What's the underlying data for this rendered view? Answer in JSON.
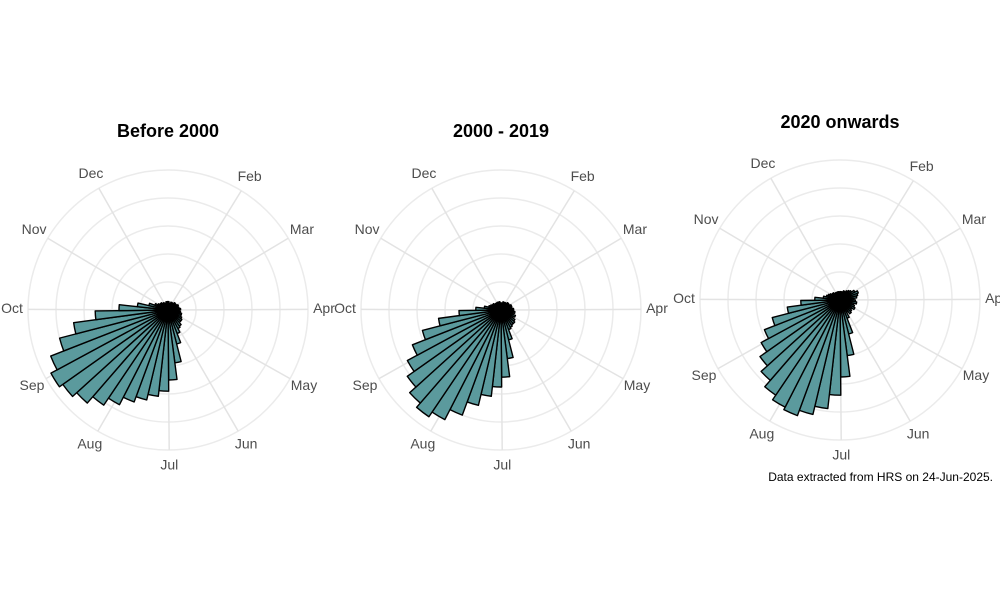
{
  "chart_data": [
    {
      "type": "polar_bar",
      "title": "Before 2000",
      "color": "#5b9a9d",
      "x": [
        0,
        7,
        14,
        21,
        28,
        35,
        42,
        49,
        56,
        63,
        70,
        77,
        84,
        91,
        98,
        105,
        112,
        119,
        126,
        133,
        140,
        147,
        154,
        161,
        168,
        175,
        182,
        189,
        196,
        203,
        210,
        217,
        224,
        231,
        238,
        245,
        252,
        259,
        266,
        273,
        280,
        287,
        294,
        301,
        308,
        315,
        322,
        329,
        336,
        343,
        350,
        357
      ],
      "values": [
        6,
        5,
        5,
        6,
        5,
        6,
        7,
        6,
        7,
        8,
        7,
        8,
        9,
        8,
        9,
        10,
        10,
        11,
        12,
        12,
        14,
        15,
        18,
        25,
        38,
        50,
        58,
        62,
        66,
        70,
        76,
        82,
        88,
        92,
        95,
        90,
        80,
        68,
        52,
        35,
        22,
        14,
        10,
        8,
        7,
        7,
        6,
        6,
        5,
        5,
        6,
        6
      ],
      "xlim": [
        0,
        365
      ],
      "xticks": [
        {
          "value": 32,
          "label": "Feb"
        },
        {
          "value": 60,
          "label": "Mar"
        },
        {
          "value": 91,
          "label": "Apr"
        },
        {
          "value": 121,
          "label": "May"
        },
        {
          "value": 152,
          "label": "Jun"
        },
        {
          "value": 182,
          "label": "Jul"
        },
        {
          "value": 213,
          "label": "Aug"
        },
        {
          "value": 244,
          "label": "Sep"
        },
        {
          "value": 274,
          "label": "Oct"
        },
        {
          "value": 305,
          "label": "Nov"
        },
        {
          "value": 335,
          "label": "Dec"
        }
      ],
      "ylim": [
        0,
        100
      ],
      "yticks": [
        20,
        40,
        60,
        80,
        100
      ],
      "grid": true
    },
    {
      "type": "polar_bar",
      "title": "2000 - 2019",
      "color": "#5b9a9d",
      "x": [
        0,
        7,
        14,
        21,
        28,
        35,
        42,
        49,
        56,
        63,
        70,
        77,
        84,
        91,
        98,
        105,
        112,
        119,
        126,
        133,
        140,
        147,
        154,
        161,
        168,
        175,
        182,
        189,
        196,
        203,
        210,
        217,
        224,
        231,
        238,
        245,
        252,
        259,
        266,
        273,
        280,
        287,
        294,
        301,
        308,
        315,
        322,
        329,
        336,
        343,
        350,
        357
      ],
      "values": [
        5,
        5,
        6,
        5,
        6,
        6,
        7,
        7,
        6,
        8,
        8,
        7,
        9,
        9,
        10,
        9,
        11,
        10,
        12,
        13,
        13,
        14,
        15,
        22,
        35,
        48,
        55,
        62,
        70,
        80,
        88,
        92,
        88,
        82,
        76,
        68,
        58,
        45,
        30,
        18,
        12,
        9,
        8,
        7,
        7,
        6,
        6,
        5,
        6,
        5,
        6,
        5
      ],
      "xlim": [
        0,
        365
      ],
      "xticks": [
        {
          "value": 32,
          "label": "Feb"
        },
        {
          "value": 60,
          "label": "Mar"
        },
        {
          "value": 91,
          "label": "Apr"
        },
        {
          "value": 121,
          "label": "May"
        },
        {
          "value": 152,
          "label": "Jun"
        },
        {
          "value": 182,
          "label": "Jul"
        },
        {
          "value": 213,
          "label": "Aug"
        },
        {
          "value": 244,
          "label": "Sep"
        },
        {
          "value": 274,
          "label": "Oct"
        },
        {
          "value": 305,
          "label": "Nov"
        },
        {
          "value": 335,
          "label": "Dec"
        }
      ],
      "ylim": [
        0,
        100
      ],
      "yticks": [
        20,
        40,
        60,
        80,
        100
      ],
      "grid": true
    },
    {
      "type": "polar_bar",
      "title": "2020 onwards",
      "color": "#5b9a9d",
      "x": [
        0,
        7,
        14,
        21,
        28,
        35,
        42,
        49,
        56,
        63,
        70,
        77,
        84,
        91,
        98,
        105,
        112,
        119,
        126,
        133,
        140,
        147,
        154,
        161,
        168,
        175,
        182,
        189,
        196,
        203,
        210,
        217,
        224,
        231,
        238,
        245,
        252,
        259,
        266,
        273,
        280,
        287,
        294,
        301,
        308,
        315,
        322,
        329,
        336,
        343,
        350,
        357
      ],
      "values": [
        6,
        6,
        5,
        7,
        6,
        8,
        9,
        10,
        12,
        14,
        13,
        12,
        10,
        11,
        12,
        10,
        11,
        12,
        10,
        11,
        12,
        10,
        14,
        25,
        40,
        55,
        68,
        78,
        84,
        88,
        86,
        82,
        76,
        70,
        64,
        58,
        50,
        38,
        28,
        18,
        12,
        10,
        9,
        8,
        7,
        7,
        6,
        6,
        5,
        6,
        6,
        5
      ],
      "xlim": [
        0,
        365
      ],
      "xticks": [
        {
          "value": 32,
          "label": "Feb"
        },
        {
          "value": 60,
          "label": "Mar"
        },
        {
          "value": 91,
          "label": "Apr"
        },
        {
          "value": 121,
          "label": "May"
        },
        {
          "value": 152,
          "label": "Jun"
        },
        {
          "value": 182,
          "label": "Jul"
        },
        {
          "value": 213,
          "label": "Aug"
        },
        {
          "value": 244,
          "label": "Sep"
        },
        {
          "value": 274,
          "label": "Oct"
        },
        {
          "value": 305,
          "label": "Nov"
        },
        {
          "value": 335,
          "label": "Dec"
        }
      ],
      "ylim": [
        0,
        100
      ],
      "yticks": [
        20,
        40,
        60,
        80,
        100
      ],
      "grid": true
    }
  ],
  "caption": "Data extracted from HRS on 24-Jun-2025."
}
